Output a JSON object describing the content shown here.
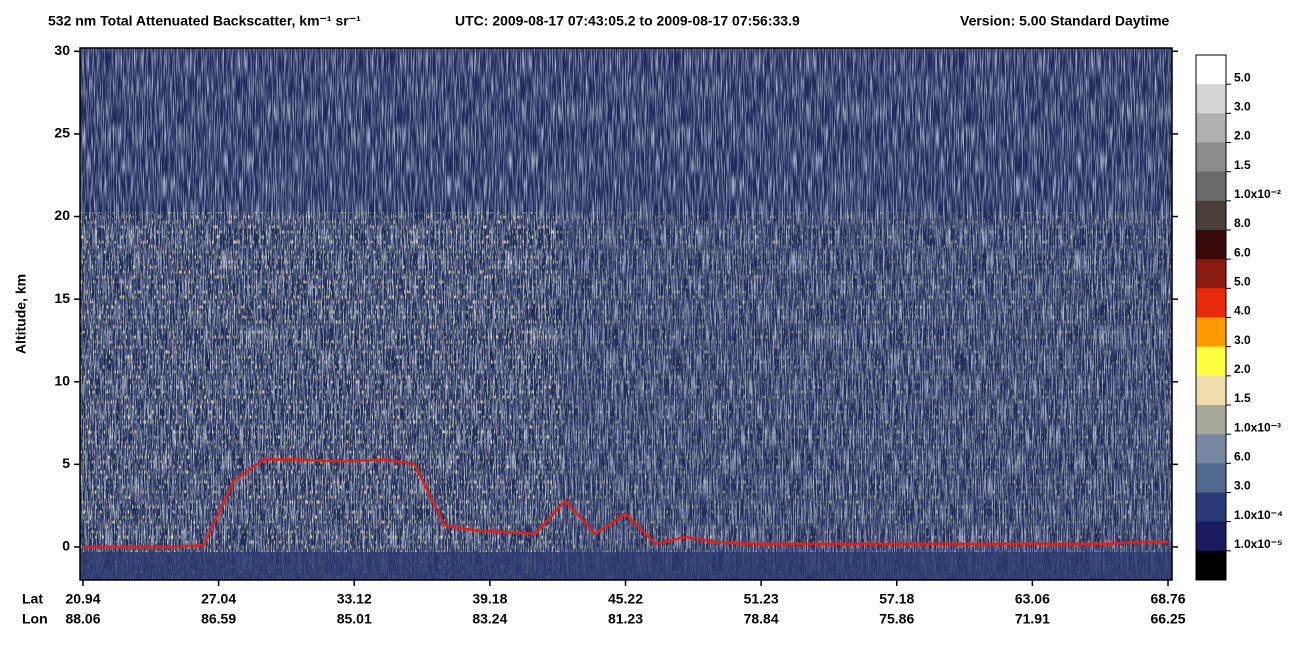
{
  "chart_data": {
    "type": "curtain",
    "title": "532 nm Total Attenuated Backscatter, km⁻¹ sr⁻¹",
    "utc": "UTC:  2009-08-17 07:43:05.2  to  2009-08-17 07:56:33.9",
    "version": "Version: 5.00  Standard  Daytime",
    "ylabel": "Altitude, km",
    "ylim": [
      -2,
      30.2
    ],
    "yticks": [
      0,
      5,
      10,
      15,
      20,
      25,
      30
    ],
    "row_labels": [
      "Lat",
      "Lon"
    ],
    "lat": [
      "20.94",
      "27.04",
      "33.12",
      "39.18",
      "45.22",
      "51.23",
      "57.18",
      "63.06",
      "68.76"
    ],
    "lon": [
      "88.06",
      "86.59",
      "85.01",
      "83.24",
      "81.23",
      "78.84",
      "75.86",
      "71.91",
      "66.25"
    ],
    "surface": {
      "color": "#e0201a",
      "values": [
        0,
        0,
        0,
        0,
        0.1,
        4,
        5.3,
        5.3,
        5.2,
        5.2,
        5.3,
        5.0,
        1.3,
        1.0,
        0.9,
        0.8,
        2.8,
        0.8,
        2.0,
        0.2,
        0.6,
        0.3,
        0.2,
        0.2,
        0.2,
        0.2,
        0.2,
        0.2,
        0.2,
        0.2,
        0.2,
        0.2,
        0.2,
        0.2,
        0.2,
        0.3,
        0.3
      ]
    },
    "colorbar": {
      "colors": [
        "#ffffff",
        "#d4d4d4",
        "#b0b0b0",
        "#8c8c8c",
        "#6a6a6a",
        "#4a3e3a",
        "#3a0a0a",
        "#8b1a10",
        "#e82a0a",
        "#ff9a00",
        "#ffff40",
        "#eedcaa",
        "#a8a89a",
        "#7888a0",
        "#506a90",
        "#2a3a78",
        "#1a1a60",
        "#000000"
      ],
      "labels": [
        "5.0",
        "3.0",
        "2.0",
        "1.5",
        "1.0x10⁻²",
        "8.0",
        "6.0",
        "5.0",
        "4.0",
        "3.0",
        "2.0",
        "1.5",
        "1.0x10⁻³",
        "6.0",
        "3.0",
        "1.0x10⁻⁴",
        "1.0x10⁻⁵"
      ]
    }
  }
}
